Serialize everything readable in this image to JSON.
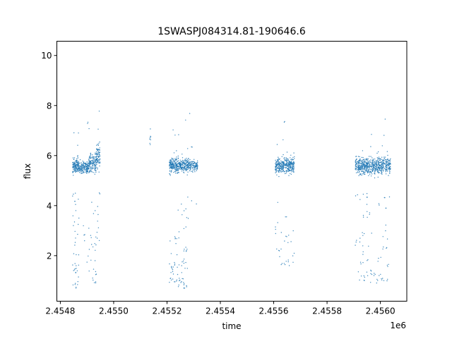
{
  "chart_data": {
    "type": "scatter",
    "title": "1SWASPJ084314.81-190646.6",
    "xlabel": "time",
    "ylabel": "flux",
    "x_offset_label": "1e6",
    "xlim": [
      2454787,
      2456099
    ],
    "ylim": [
      0.18,
      10.57
    ],
    "xticks": [
      2454800,
      2455000,
      2455200,
      2455400,
      2455600,
      2455800,
      2456000
    ],
    "xtick_labels": [
      "2.4548",
      "2.4550",
      "2.4552",
      "2.4554",
      "2.4556",
      "2.4558",
      "2.4560"
    ],
    "yticks": [
      2,
      4,
      6,
      8,
      10
    ],
    "ytick_labels": [
      "2",
      "4",
      "6",
      "8",
      "10"
    ],
    "grid": false,
    "color": "#1f77b4",
    "segments": [
      {
        "t": [
          2454846,
          2454870
        ],
        "flux": 5.6,
        "sd": 0.25,
        "n": 180,
        "dip_frac": 0.25,
        "dip_range": [
          0.7,
          4.5
        ]
      },
      {
        "t": [
          2454870,
          2454905
        ],
        "flux": 5.5,
        "sd": 0.2,
        "n": 160,
        "dip_frac": 0.03,
        "dip_range": [
          1.7,
          3.6
        ]
      },
      {
        "t": [
          2454905,
          2454935
        ],
        "flux": 5.7,
        "sd": 0.3,
        "n": 170,
        "dip_frac": 0.2,
        "dip_range": [
          0.9,
          4.5
        ]
      },
      {
        "t": [
          2454935,
          2454949
        ],
        "flux": 6.0,
        "sd": 0.45,
        "n": 90,
        "dip_frac": 0.1,
        "dip_range": [
          2.6,
          5.0
        ]
      },
      {
        "t": [
          2455135,
          2455140
        ],
        "flux": 6.7,
        "sd": 0.5,
        "n": 8,
        "dip_frac": 0,
        "dip_range": [
          6,
          6
        ]
      },
      {
        "t": [
          2455209,
          2455240
        ],
        "flux": 5.6,
        "sd": 0.25,
        "n": 200,
        "dip_frac": 0.12,
        "dip_range": [
          0.9,
          2.8
        ]
      },
      {
        "t": [
          2455240,
          2455280
        ],
        "flux": 5.6,
        "sd": 0.25,
        "n": 230,
        "dip_frac": 0.2,
        "dip_range": [
          0.7,
          4.5
        ]
      },
      {
        "t": [
          2455280,
          2455315
        ],
        "flux": 5.6,
        "sd": 0.2,
        "n": 120,
        "dip_frac": 0.01,
        "dip_range": [
          4,
          5
        ]
      },
      {
        "t": [
          2455606,
          2455678
        ],
        "flux": 5.6,
        "sd": 0.28,
        "n": 380,
        "dip_frac": 0.08,
        "dip_range": [
          1.6,
          4.2
        ]
      },
      {
        "t": [
          2455906,
          2455960
        ],
        "flux": 5.6,
        "sd": 0.3,
        "n": 300,
        "dip_frac": 0.12,
        "dip_range": [
          1.0,
          4.5
        ]
      },
      {
        "t": [
          2455960,
          2456038
        ],
        "flux": 5.6,
        "sd": 0.3,
        "n": 380,
        "dip_frac": 0.12,
        "dip_range": [
          0.9,
          4.5
        ]
      }
    ]
  }
}
